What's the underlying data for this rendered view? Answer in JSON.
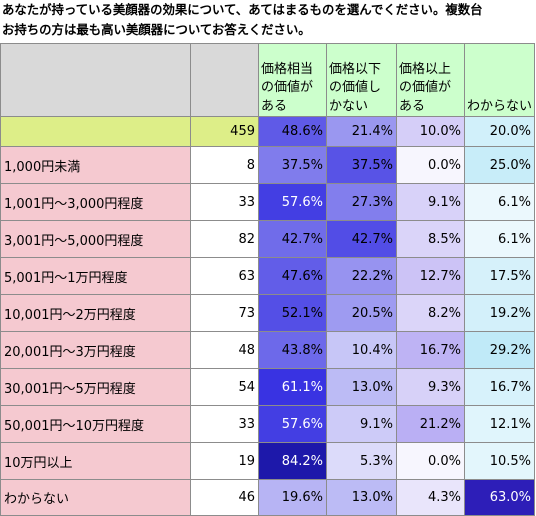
{
  "title_lines": [
    "あなたが持っている美顔器の効果について、あてはまるものを選んでください。複数台",
    "お持ちの方は最も高い美顔器についてお答えください。"
  ],
  "colors": {
    "header_fill": "#ccffcc",
    "total_row_fill": "#ddee88",
    "label_fill": "#f5c9d0",
    "blank_header_fill": "#d9d9d9"
  },
  "chart_data": {
    "type": "table",
    "columns": [
      "価格相当の価値がある",
      "価格以下の価値しかない",
      "価格以上の価値がある",
      "わからない"
    ],
    "column_lines": [
      [
        "価格相当",
        "の価値が",
        "ある"
      ],
      [
        "価格以下",
        "の価値し",
        "かない"
      ],
      [
        "価格以上",
        "の価値が",
        "ある"
      ],
      [
        "わからない"
      ]
    ],
    "rows": [
      {
        "label": "",
        "n": "459",
        "values": [
          "48.6%",
          "21.4%",
          "10.0%",
          "20.0%"
        ]
      },
      {
        "label": "1,000円未満",
        "n": "8",
        "values": [
          "37.5%",
          "37.5%",
          "0.0%",
          "25.0%"
        ]
      },
      {
        "label": "1,001円～3,000円程度",
        "n": "33",
        "values": [
          "57.6%",
          "27.3%",
          "9.1%",
          "6.1%"
        ]
      },
      {
        "label": "3,001円～5,000円程度",
        "n": "82",
        "values": [
          "42.7%",
          "42.7%",
          "8.5%",
          "6.1%"
        ]
      },
      {
        "label": "5,001円～1万円程度",
        "n": "63",
        "values": [
          "47.6%",
          "22.2%",
          "12.7%",
          "17.5%"
        ]
      },
      {
        "label": "10,001円～2万円程度",
        "n": "73",
        "values": [
          "52.1%",
          "20.5%",
          "8.2%",
          "19.2%"
        ]
      },
      {
        "label": "20,001円～3万円程度",
        "n": "48",
        "values": [
          "43.8%",
          "10.4%",
          "16.7%",
          "29.2%"
        ]
      },
      {
        "label": "30,001円～5万円程度",
        "n": "54",
        "values": [
          "61.1%",
          "13.0%",
          "9.3%",
          "16.7%"
        ]
      },
      {
        "label": "50,001円～10万円程度",
        "n": "33",
        "values": [
          "57.6%",
          "9.1%",
          "21.2%",
          "12.1%"
        ]
      },
      {
        "label": "10万円以上",
        "n": "19",
        "values": [
          "84.2%",
          "5.3%",
          "0.0%",
          "10.5%"
        ]
      },
      {
        "label": "わからない",
        "n": "46",
        "values": [
          "19.6%",
          "13.0%",
          "4.3%",
          "63.0%"
        ]
      }
    ]
  }
}
